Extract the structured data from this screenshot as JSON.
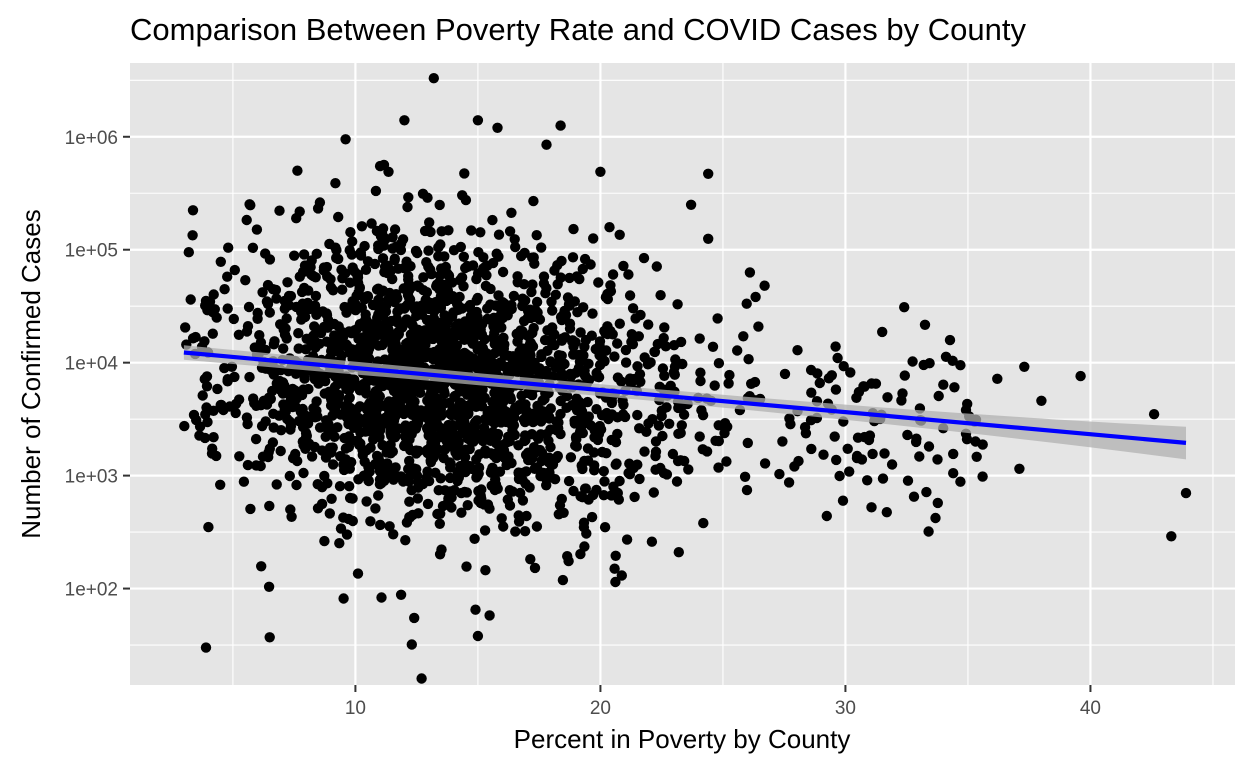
{
  "chart_data": {
    "type": "scatter",
    "title": "Comparison Between Poverty Rate and COVID Cases by County",
    "xlabel": "Percent in Poverty by County",
    "ylabel": "Number of Confirmed Cases",
    "x_ticks": [
      10,
      20,
      30,
      40
    ],
    "x_tick_labels": [
      "10",
      "20",
      "30",
      "40"
    ],
    "y_scale": "log10",
    "y_ticks": [
      100,
      1000,
      10000,
      100000,
      1000000
    ],
    "y_tick_labels": [
      "1e+02",
      "1e+03",
      "1e+04",
      "1e+05",
      "1e+06"
    ],
    "xlim": [
      0.8,
      45.9
    ],
    "ylim": [
      14,
      4500000
    ],
    "grid": true,
    "legend": "none",
    "colors": {
      "panel": "#e5e5e5",
      "grid": "#ffffff",
      "points": "#000000",
      "trend": "#0000ff",
      "ribbon": "#b0b0b0"
    },
    "trend_line": {
      "method": "linear fit on log scale",
      "x": [
        3.0,
        43.9
      ],
      "y": [
        12300,
        1950
      ],
      "ci_lower": [
        10800,
        1450
      ],
      "ci_upper": [
        14000,
        2600
      ]
    },
    "highlighted_points": [
      {
        "x": 13.2,
        "y": 3300000
      },
      {
        "x": 12.7,
        "y": 16
      },
      {
        "x": 3.9,
        "y": 30
      },
      {
        "x": 6.5,
        "y": 37
      },
      {
        "x": 43.9,
        "y": 700
      },
      {
        "x": 43.3,
        "y": 290
      },
      {
        "x": 42.6,
        "y": 3500
      },
      {
        "x": 39.6,
        "y": 7600
      },
      {
        "x": 32.4,
        "y": 31000
      },
      {
        "x": 24.4,
        "y": 470000
      },
      {
        "x": 15.0,
        "y": 1400000
      },
      {
        "x": 12.0,
        "y": 1400000
      },
      {
        "x": 15.8,
        "y": 1200000
      },
      {
        "x": 17.8,
        "y": 850000
      },
      {
        "x": 9.6,
        "y": 950000
      },
      {
        "x": 20.0,
        "y": 490000
      },
      {
        "x": 23.7,
        "y": 250000
      },
      {
        "x": 24.4,
        "y": 125000
      },
      {
        "x": 3.2,
        "y": 95000
      },
      {
        "x": 4.0,
        "y": 350
      },
      {
        "x": 3.5,
        "y": 3100
      },
      {
        "x": 29.9,
        "y": 600
      },
      {
        "x": 32.8,
        "y": 650
      },
      {
        "x": 35.6,
        "y": 980
      },
      {
        "x": 37.1,
        "y": 1150
      },
      {
        "x": 34.4,
        "y": 1050
      },
      {
        "x": 37.3,
        "y": 9200
      },
      {
        "x": 36.2,
        "y": 7200
      },
      {
        "x": 38.0,
        "y": 4600
      },
      {
        "x": 30.2,
        "y": 8200
      },
      {
        "x": 26.7,
        "y": 48000
      },
      {
        "x": 26.1,
        "y": 63000
      },
      {
        "x": 22.3,
        "y": 71000
      },
      {
        "x": 14.9,
        "y": 65
      },
      {
        "x": 15.0,
        "y": 38
      },
      {
        "x": 12.4,
        "y": 55
      },
      {
        "x": 12.3,
        "y": 32
      },
      {
        "x": 23.2,
        "y": 210
      },
      {
        "x": 22.1,
        "y": 260
      },
      {
        "x": 24.2,
        "y": 380
      }
    ]
  }
}
